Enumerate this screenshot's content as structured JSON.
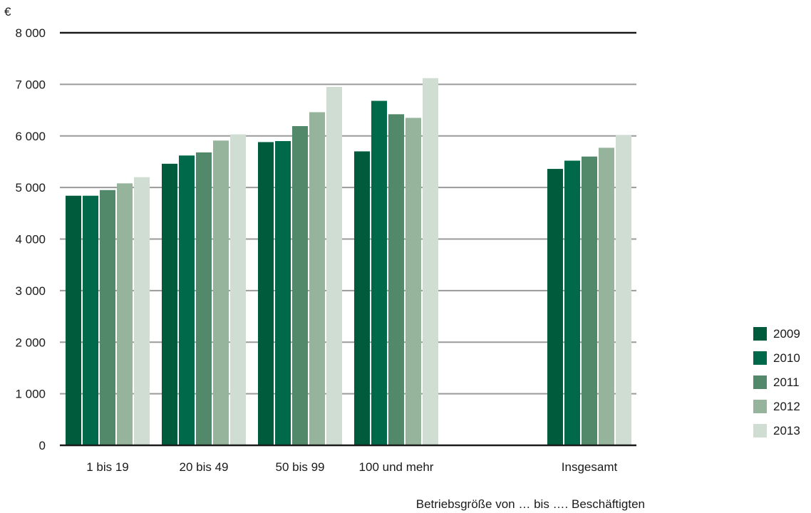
{
  "chart_data": {
    "type": "bar",
    "unit_label": "€",
    "xlabel": "Betriebsgröße von … bis …. Beschäftigten",
    "ylabel": "",
    "ylim": [
      0,
      8000
    ],
    "yticks": [
      0,
      1000,
      2000,
      3000,
      4000,
      5000,
      6000,
      7000,
      8000
    ],
    "ytick_labels": [
      "0",
      "1 000",
      "2 000",
      "3 000",
      "4 000",
      "5 000",
      "6 000",
      "7 000",
      "8 000"
    ],
    "categories": [
      "1 bis 19",
      "20 bis 49",
      "50 bis 99",
      "100 und mehr",
      "Insgesamt"
    ],
    "grid": true,
    "legend_position": "right",
    "series": [
      {
        "name": "2009",
        "color": "#005a3c",
        "values": [
          4840,
          5460,
          5880,
          5700,
          5360
        ]
      },
      {
        "name": "2010",
        "color": "#00694a",
        "values": [
          4840,
          5620,
          5900,
          6680,
          5520
        ]
      },
      {
        "name": "2011",
        "color": "#52896a",
        "values": [
          4950,
          5680,
          6190,
          6420,
          5600
        ]
      },
      {
        "name": "2012",
        "color": "#95b49b",
        "values": [
          5080,
          5910,
          6460,
          6350,
          5770
        ]
      },
      {
        "name": "2013",
        "color": "#d0ddd3",
        "values": [
          5200,
          6030,
          6950,
          7120,
          6010
        ]
      }
    ]
  }
}
